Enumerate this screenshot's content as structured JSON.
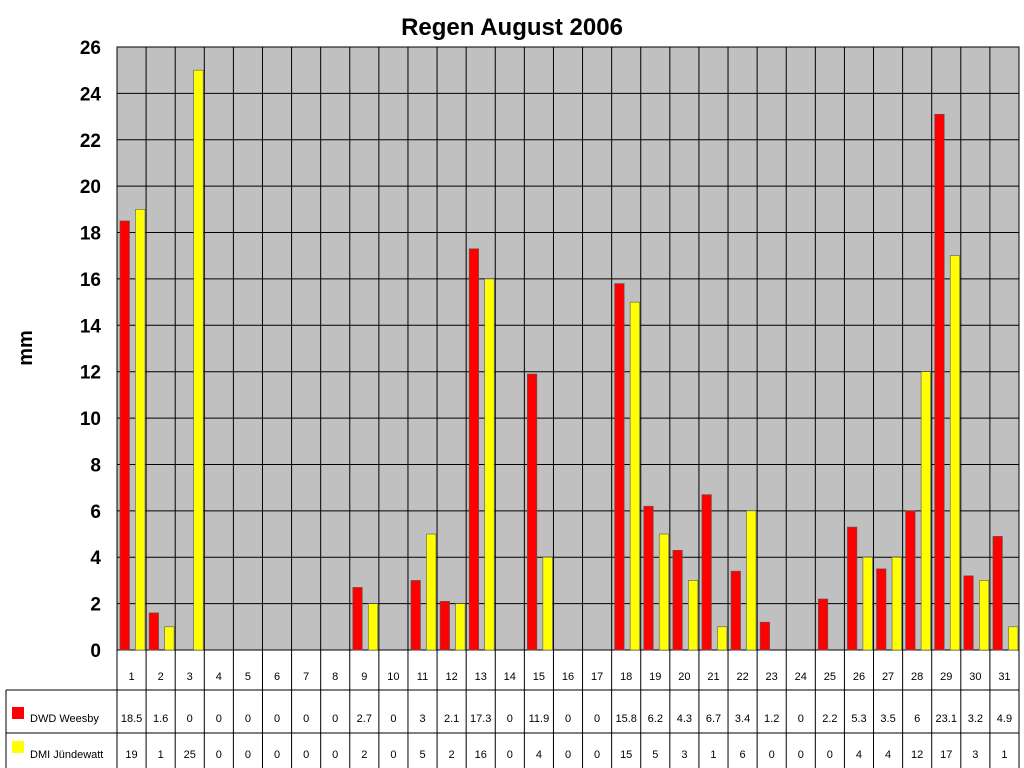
{
  "chart_data": {
    "type": "bar",
    "title": "Regen August 2006",
    "ylabel": "mm",
    "xlabel": "",
    "ylim": [
      0,
      26
    ],
    "yticks": [
      0,
      2,
      4,
      6,
      8,
      10,
      12,
      14,
      16,
      18,
      20,
      22,
      24,
      26
    ],
    "grid": true,
    "plot_background": "#c0c0c0",
    "legend_placement": "data-table-left",
    "categories": [
      "1",
      "2",
      "3",
      "4",
      "5",
      "6",
      "7",
      "8",
      "9",
      "10",
      "11",
      "12",
      "13",
      "14",
      "15",
      "16",
      "17",
      "18",
      "19",
      "20",
      "21",
      "22",
      "23",
      "24",
      "25",
      "26",
      "27",
      "28",
      "29",
      "30",
      "31"
    ],
    "series": [
      {
        "name": "DWD Weesby",
        "color": "#ff0000",
        "values": [
          18.5,
          1.6,
          0,
          0,
          0,
          0,
          0,
          0,
          2.7,
          0,
          3,
          2.1,
          17.3,
          0,
          11.9,
          0,
          0,
          15.8,
          6.2,
          4.3,
          6.7,
          3.4,
          1.2,
          0,
          2.2,
          5.3,
          3.5,
          6,
          23.1,
          3.2,
          4.9
        ]
      },
      {
        "name": "DMI Jündewatt",
        "color": "#ffff00",
        "values": [
          19,
          1,
          25,
          0,
          0,
          0,
          0,
          0,
          2,
          0,
          5,
          2,
          16,
          0,
          4,
          0,
          0,
          15,
          5,
          3,
          1,
          6,
          0,
          0,
          0,
          4,
          4,
          12,
          17,
          3,
          1
        ]
      }
    ]
  }
}
